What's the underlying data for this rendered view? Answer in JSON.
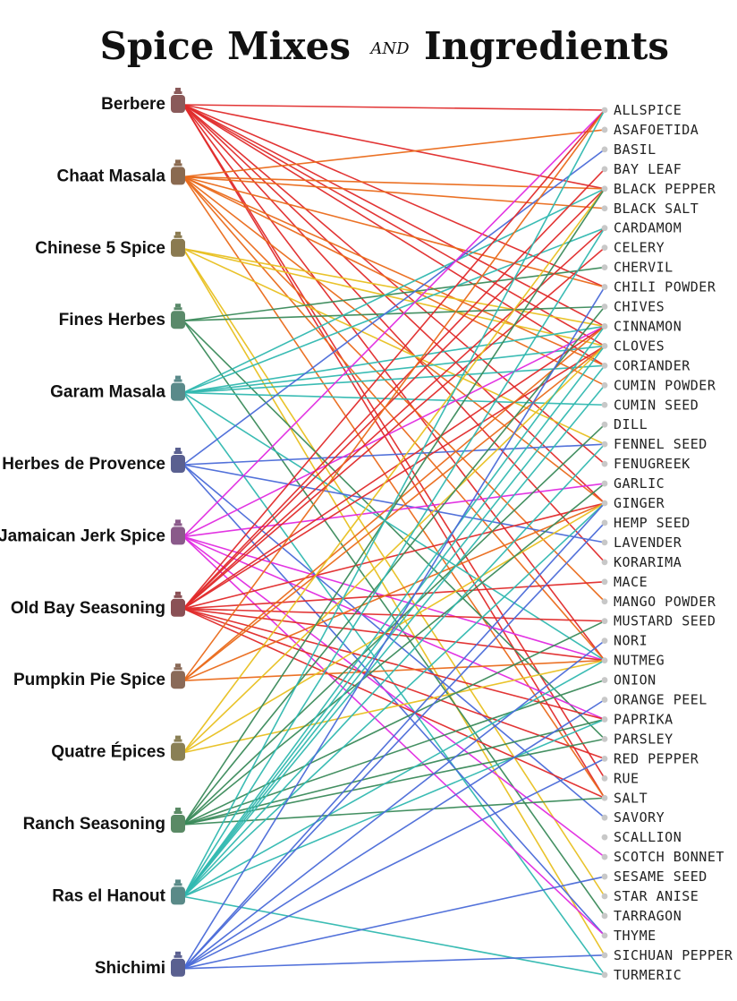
{
  "chart_data": {
    "type": "bipartite",
    "title_left": "Spice Mixes",
    "title_and": "AND",
    "title_right": "Ingredients",
    "mixes": [
      {
        "name": "Berbere",
        "color": "#8a5a5a"
      },
      {
        "name": "Chaat Masala",
        "color": "#8a6a50"
      },
      {
        "name": "Chinese 5 Spice",
        "color": "#8a7a50"
      },
      {
        "name": "Fines Herbes",
        "color": "#5a8a6a"
      },
      {
        "name": "Garam Masala",
        "color": "#5a8a8a"
      },
      {
        "name": "Herbes de Provence",
        "color": "#5a6090"
      },
      {
        "name": "Jamaican Jerk Spice",
        "color": "#8a5a8a"
      },
      {
        "name": "Old Bay Seasoning",
        "color": "#8a5055"
      },
      {
        "name": "Pumpkin Pie Spice",
        "color": "#8a6a58"
      },
      {
        "name": "Quatre Épices",
        "color": "#8a8055"
      },
      {
        "name": "Ranch Seasoning",
        "color": "#5a8a65"
      },
      {
        "name": "Ras el Hanout",
        "color": "#5a8a88"
      },
      {
        "name": "Shichimi",
        "color": "#5a6090"
      }
    ],
    "ingredients": [
      "ALLSPICE",
      "ASAFOETIDA",
      "BASIL",
      "BAY LEAF",
      "BLACK PEPPER",
      "BLACK SALT",
      "CARDAMOM",
      "CELERY",
      "CHERVIL",
      "CHILI POWDER",
      "CHIVES",
      "CINNAMON",
      "CLOVES",
      "CORIANDER",
      "CUMIN POWDER",
      "CUMIN SEED",
      "DILL",
      "FENNEL SEED",
      "FENUGREEK",
      "GARLIC",
      "GINGER",
      "HEMP SEED",
      "LAVENDER",
      "KORARIMA",
      "MACE",
      "MANGO POWDER",
      "MUSTARD SEED",
      "NORI",
      "NUTMEG",
      "ONION",
      "ORANGE PEEL",
      "PAPRIKA",
      "PARSLEY",
      "RED PEPPER",
      "RUE",
      "SALT",
      "SAVORY",
      "SCALLION",
      "SCOTCH BONNET",
      "SESAME SEED",
      "STAR ANISE",
      "TARRAGON",
      "THYME",
      "SICHUAN PEPPER",
      "TURMERIC"
    ],
    "links": [
      {
        "mix": "Berbere",
        "color": "#e02a2a",
        "ingredients": [
          "ALLSPICE",
          "BLACK PEPPER",
          "CHILI POWDER",
          "CINNAMON",
          "CLOVES",
          "CORIANDER",
          "FENUGREEK",
          "GINGER",
          "KORARIMA",
          "NUTMEG",
          "SALT",
          "RUE"
        ]
      },
      {
        "mix": "Chaat Masala",
        "color": "#ea6a1a",
        "ingredients": [
          "ASAFOETIDA",
          "BLACK PEPPER",
          "BLACK SALT",
          "CHILI POWDER",
          "CORIANDER",
          "CUMIN POWDER",
          "GINGER",
          "MANGO POWDER",
          "NUTMEG",
          "SALT"
        ]
      },
      {
        "mix": "Chinese 5 Spice",
        "color": "#e8c020",
        "ingredients": [
          "CINNAMON",
          "CLOVES",
          "FENNEL SEED",
          "STAR ANISE",
          "SICHUAN PEPPER"
        ]
      },
      {
        "mix": "Fines Herbes",
        "color": "#3a8a5a",
        "ingredients": [
          "CHERVIL",
          "CHIVES",
          "PARSLEY",
          "TARRAGON"
        ]
      },
      {
        "mix": "Garam Masala",
        "color": "#30b8b0",
        "ingredients": [
          "BLACK PEPPER",
          "CARDAMOM",
          "CINNAMON",
          "CLOVES",
          "CORIANDER",
          "CUMIN SEED",
          "NUTMEG",
          "TURMERIC"
        ]
      },
      {
        "mix": "Herbes de Provence",
        "color": "#4a6ad8",
        "ingredients": [
          "BASIL",
          "FENNEL SEED",
          "LAVENDER",
          "SAVORY",
          "THYME"
        ]
      },
      {
        "mix": "Jamaican Jerk Spice",
        "color": "#e02ae0",
        "ingredients": [
          "ALLSPICE",
          "CINNAMON",
          "GARLIC",
          "NUTMEG",
          "PAPRIKA",
          "THYME",
          "SCOTCH BONNET"
        ]
      },
      {
        "mix": "Old Bay Seasoning",
        "color": "#e02a2a",
        "ingredients": [
          "ALLSPICE",
          "BAY LEAF",
          "BLACK PEPPER",
          "CARDAMOM",
          "CELERY",
          "CINNAMON",
          "CLOVES",
          "GINGER",
          "MACE",
          "MUSTARD SEED",
          "NUTMEG",
          "PAPRIKA",
          "RED PEPPER",
          "SALT"
        ]
      },
      {
        "mix": "Pumpkin Pie Spice",
        "color": "#ea6a1a",
        "ingredients": [
          "ALLSPICE",
          "CINNAMON",
          "CLOVES",
          "GINGER",
          "NUTMEG"
        ]
      },
      {
        "mix": "Quatre Épices",
        "color": "#e8c020",
        "ingredients": [
          "CLOVES",
          "GINGER",
          "NUTMEG",
          "BLACK PEPPER"
        ]
      },
      {
        "mix": "Ranch Seasoning",
        "color": "#3a8a5a",
        "ingredients": [
          "BLACK PEPPER",
          "CHIVES",
          "DILL",
          "GARLIC",
          "MUSTARD SEED",
          "ONION",
          "PAPRIKA",
          "PARSLEY",
          "SALT"
        ]
      },
      {
        "mix": "Ras el Hanout",
        "color": "#30b8b0",
        "ingredients": [
          "ALLSPICE",
          "CARDAMOM",
          "CINNAMON",
          "CLOVES",
          "CORIANDER",
          "CUMIN POWDER",
          "FENNEL SEED",
          "GINGER",
          "NUTMEG",
          "PAPRIKA",
          "TURMERIC"
        ]
      },
      {
        "mix": "Shichimi",
        "color": "#4a6ad8",
        "ingredients": [
          "CHILI POWDER",
          "GINGER",
          "HEMP SEED",
          "NORI",
          "ORANGE PEEL",
          "RED PEPPER",
          "SESAME SEED",
          "SICHUAN PEPPER"
        ]
      }
    ]
  }
}
